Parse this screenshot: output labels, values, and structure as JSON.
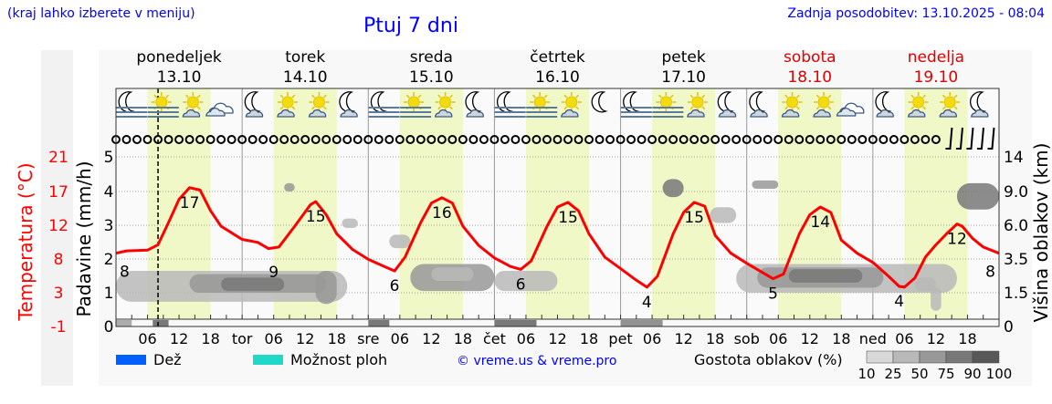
{
  "header": {
    "hint": "(kraj lahko izberete v meniju)",
    "title": "Ptuj 7 dni",
    "updated": "Zadnja posodobitev: 13.10.2025 - 08:04"
  },
  "colors": {
    "link": "#0000ff",
    "temp": "#ff0000",
    "day_band": "#f0f8c8",
    "weekend": "#e00000",
    "rain": "#0060ff",
    "showers": "#20d8c8"
  },
  "chart_data": {
    "type": "line",
    "days": [
      {
        "name": "ponedeljek",
        "date": "13.10",
        "short": "",
        "weekend": false
      },
      {
        "name": "torek",
        "date": "14.10",
        "short": "tor",
        "weekend": false
      },
      {
        "name": "sreda",
        "date": "15.10",
        "short": "sre",
        "weekend": false
      },
      {
        "name": "četrtek",
        "date": "16.10",
        "short": "čet",
        "weekend": false
      },
      {
        "name": "petek",
        "date": "17.10",
        "short": "pet",
        "weekend": false
      },
      {
        "name": "sobota",
        "date": "18.10",
        "short": "sob",
        "weekend": true
      },
      {
        "name": "nedelja",
        "date": "19.10",
        "short": "ned",
        "weekend": true
      }
    ],
    "hour_ticks": [
      "06",
      "12",
      "18"
    ],
    "current_hour": 8,
    "left_axis": {
      "label": "Temperatura (°C)",
      "ticks": [
        "21",
        "17",
        "12",
        "8",
        "3",
        "-1"
      ],
      "range": [
        -1,
        21
      ]
    },
    "precip_axis": {
      "label": "Padavine (mm/h)",
      "ticks": [
        "5",
        "4",
        "3",
        "2",
        "1",
        "0"
      ],
      "range": [
        0,
        5
      ]
    },
    "right_axis": {
      "label": "Višina oblakov (km)",
      "ticks": [
        "14",
        "9.0",
        "6.0",
        "3.5",
        "1.5",
        "0"
      ]
    },
    "temperature": [
      [
        0,
        8.5
      ],
      [
        2,
        8.8
      ],
      [
        6,
        8.9
      ],
      [
        8,
        9.6
      ],
      [
        10,
        12.5
      ],
      [
        12,
        15.5
      ],
      [
        14,
        17
      ],
      [
        16,
        16.7
      ],
      [
        18,
        14
      ],
      [
        20,
        12
      ],
      [
        24,
        10.3
      ],
      [
        27,
        9.9
      ],
      [
        29,
        9.1
      ],
      [
        31,
        9.3
      ],
      [
        34,
        12
      ],
      [
        37,
        14.8
      ],
      [
        38,
        15.2
      ],
      [
        40,
        13.5
      ],
      [
        42,
        11
      ],
      [
        45,
        9
      ],
      [
        48,
        7.7
      ],
      [
        51,
        6.8
      ],
      [
        53,
        6.2
      ],
      [
        55,
        8
      ],
      [
        58,
        12.5
      ],
      [
        60,
        15
      ],
      [
        62,
        15.7
      ],
      [
        64,
        15
      ],
      [
        66,
        12
      ],
      [
        69,
        9.5
      ],
      [
        72,
        7.9
      ],
      [
        75,
        6.8
      ],
      [
        77,
        6.4
      ],
      [
        79,
        7.5
      ],
      [
        82,
        12
      ],
      [
        84,
        14.5
      ],
      [
        86,
        15.1
      ],
      [
        88,
        14
      ],
      [
        90,
        11
      ],
      [
        93,
        8
      ],
      [
        96,
        6.5
      ],
      [
        99,
        5
      ],
      [
        101,
        4.1
      ],
      [
        103,
        5.5
      ],
      [
        106,
        11
      ],
      [
        108,
        13.8
      ],
      [
        110,
        15.1
      ],
      [
        112,
        14.6
      ],
      [
        114,
        10.8
      ],
      [
        117,
        8.5
      ],
      [
        120,
        7.2
      ],
      [
        123,
        6
      ],
      [
        125,
        5.2
      ],
      [
        127,
        5.8
      ],
      [
        130,
        11
      ],
      [
        132,
        13.5
      ],
      [
        134,
        14.5
      ],
      [
        136,
        13.8
      ],
      [
        138,
        10.2
      ],
      [
        141,
        8.5
      ],
      [
        144,
        7.3
      ],
      [
        147,
        5.5
      ],
      [
        149,
        4.2
      ],
      [
        150,
        4.1
      ],
      [
        152,
        5.3
      ],
      [
        154,
        8
      ],
      [
        156,
        9.6
      ],
      [
        158,
        11
      ],
      [
        160,
        12.3
      ],
      [
        161,
        12
      ],
      [
        163,
        10.4
      ],
      [
        165,
        9.3
      ],
      [
        168,
        8.5
      ]
    ],
    "temp_labels": [
      [
        0,
        "8"
      ],
      [
        14,
        "17"
      ],
      [
        30,
        "9"
      ],
      [
        38,
        "15"
      ],
      [
        53,
        "6"
      ],
      [
        62,
        "16"
      ],
      [
        77,
        "6"
      ],
      [
        86,
        "15"
      ],
      [
        101,
        "4"
      ],
      [
        110,
        "15"
      ],
      [
        125,
        "5"
      ],
      [
        134,
        "14"
      ],
      [
        149,
        "4"
      ],
      [
        160,
        "12"
      ],
      [
        168,
        "8"
      ]
    ],
    "clouds": [
      [
        0,
        44,
        1.1,
        2.8,
        25
      ],
      [
        14,
        40,
        1.5,
        2.6,
        50
      ],
      [
        20,
        32,
        1.6,
        2.4,
        75
      ],
      [
        32,
        34,
        9.0,
        10.2,
        50
      ],
      [
        38,
        42,
        1.0,
        2.8,
        50
      ],
      [
        43,
        46,
        5.8,
        6.6,
        25
      ],
      [
        52,
        56,
        4.3,
        5.3,
        25
      ],
      [
        56,
        72,
        1.6,
        3.2,
        50
      ],
      [
        60,
        68,
        2.2,
        3.0,
        25
      ],
      [
        72,
        84,
        1.6,
        2.8,
        25
      ],
      [
        104,
        108,
        8.5,
        10.8,
        75
      ],
      [
        113,
        118,
        6.2,
        7.6,
        25
      ],
      [
        121,
        126,
        9.4,
        10.6,
        50
      ],
      [
        118,
        160,
        1.5,
        3.2,
        25
      ],
      [
        122,
        146,
        1.8,
        3.0,
        50
      ],
      [
        128,
        142,
        2.1,
        2.9,
        75
      ],
      [
        152,
        156,
        1.6,
        2.4,
        25
      ],
      [
        160,
        168,
        7.4,
        10.2,
        75
      ],
      [
        155,
        157,
        0.7,
        1.8,
        25
      ]
    ],
    "ground_clouds": [
      [
        0,
        3,
        50
      ],
      [
        7,
        10,
        90
      ],
      [
        48,
        52,
        90
      ],
      [
        72,
        80,
        90
      ],
      [
        96,
        104,
        75
      ]
    ],
    "weather_icons": [
      "moon-fog",
      "sun-fog",
      "sun-cloud",
      "cloud",
      "moon-cloud",
      "sun-cloud",
      "sun-cloud",
      "moon-cloud",
      "moon-fog",
      "sun-fog",
      "sun-cloud",
      "moon-cloud",
      "moon-fog",
      "sun-fog",
      "sun-cloud",
      "moon",
      "moon-fog",
      "sun-fog",
      "sun-cloud",
      "moon-cloud",
      "moon-cloud",
      "sun-cloud",
      "sun-cloud",
      "cloud",
      "moon-cloud",
      "sun-cloud",
      "sun-cloud",
      "moon-cloud"
    ],
    "wind": {
      "calm_count": 79,
      "barb_count": 5
    }
  },
  "legend": {
    "rain": "Dež",
    "showers": "Možnost ploh",
    "credit": "© vreme.us & vreme.pro",
    "density_label": "Gostota oblakov (%)",
    "density_ticks": [
      "10",
      "25",
      "50",
      "75",
      "90",
      "100"
    ],
    "density_colors": [
      "#d8d8d8",
      "#b8b8b8",
      "#989898",
      "#787878",
      "#585858"
    ]
  }
}
